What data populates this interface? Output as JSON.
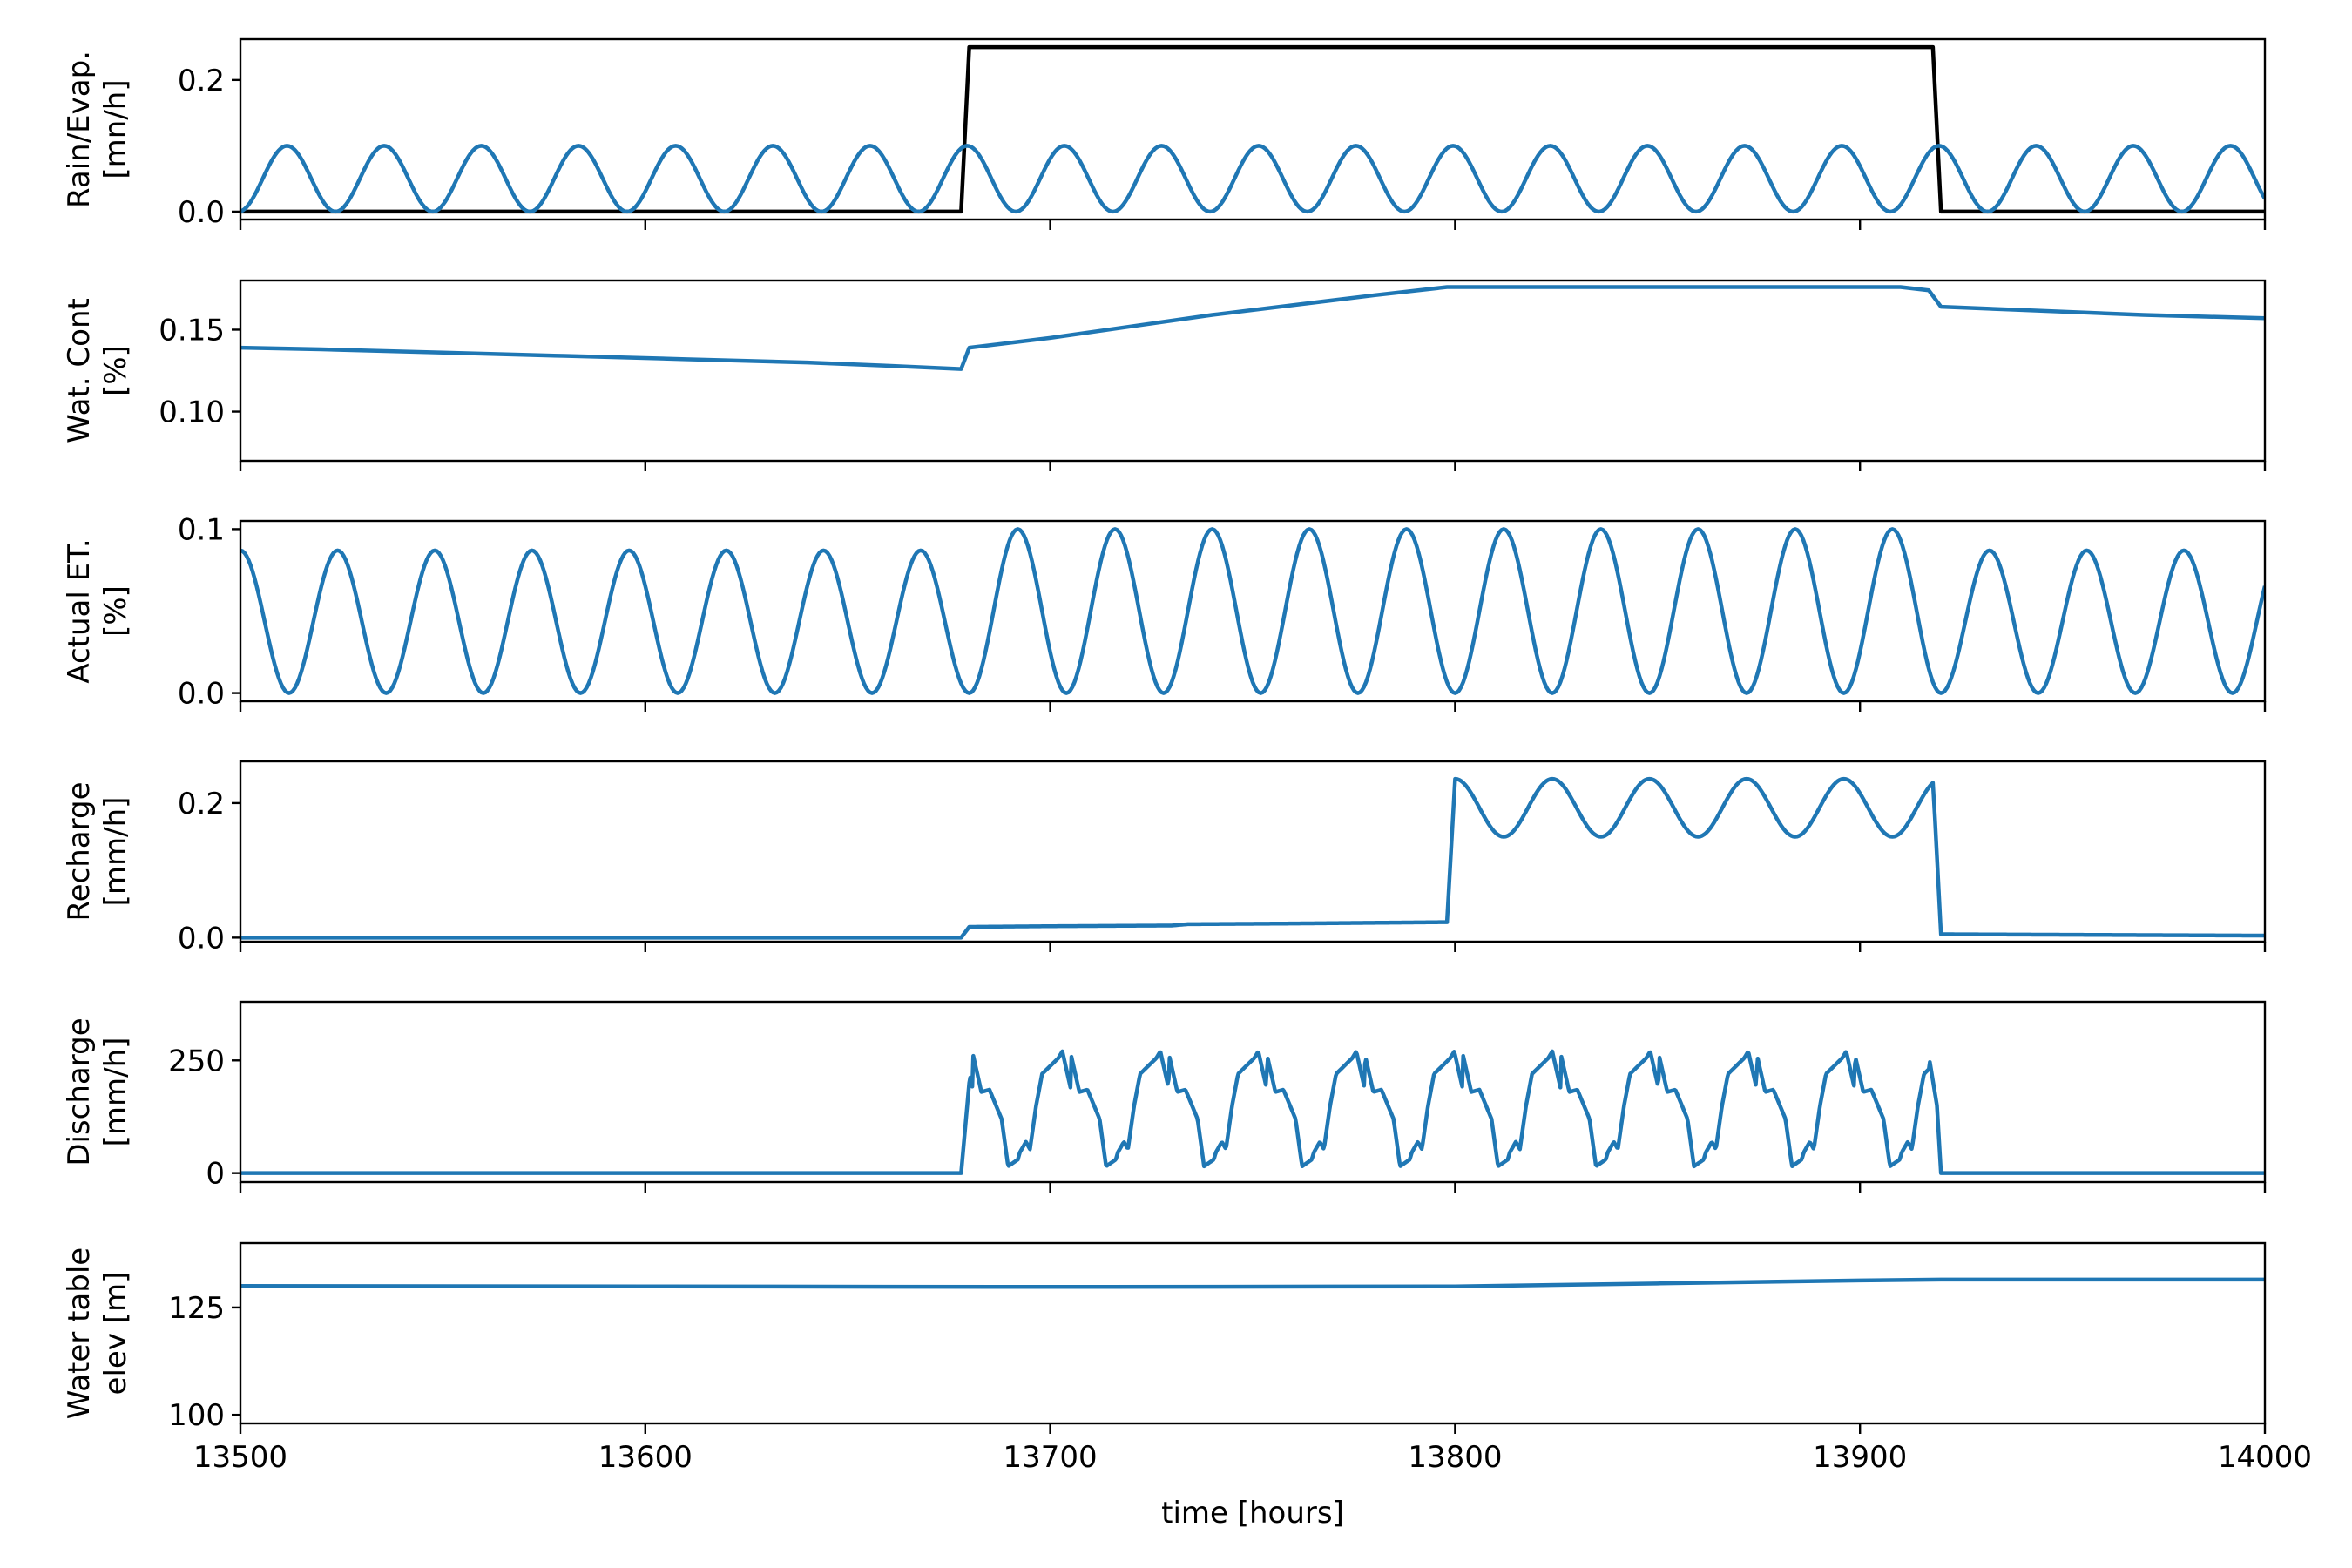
{
  "colors": {
    "blue": "#1f77b4",
    "black": "#000000",
    "axis": "#000000",
    "background": "#ffffff"
  },
  "chart_data": {
    "type": "line",
    "layout": "6 vertically stacked panels, shared x axis",
    "grid": false,
    "legend": "none",
    "xlabel": "time [hours]",
    "xlim": [
      13500,
      14000
    ],
    "xticks": [
      13500,
      13600,
      13700,
      13800,
      13900,
      14000
    ],
    "xtick_labels": [
      "13500",
      "13600",
      "13700",
      "13800",
      "13900",
      "14000"
    ],
    "panels": [
      {
        "id": "rain-evap",
        "ylabel": [
          "Rain/Evap.",
          "[mn/h]"
        ],
        "ylim": [
          -0.012,
          0.262
        ],
        "yticks": [
          0.0,
          0.2
        ],
        "ytick_labels": [
          "0.0",
          "0.2"
        ],
        "series": [
          {
            "color": "#000000",
            "x": [
              13500,
              13678,
              13680,
              13918,
              13920,
              14000
            ],
            "y": [
              0.0,
              0.0,
              0.25,
              0.25,
              0.0,
              0.0
            ]
          },
          {
            "color": "#1f77b4",
            "function": "evaporation",
            "period_hours": 24,
            "min": 0.0,
            "max": 0.1,
            "peak_hours": [
              13511.5,
              13535.5,
              13559.5,
              13583.5,
              13607.5,
              13631.5,
              13655.5,
              13679.5,
              13703.5,
              13727.5,
              13751.5,
              13775.5,
              13799.5,
              13823.5,
              13847.5,
              13871.5,
              13895.5,
              13919.5,
              13943.5,
              13967.5,
              13991.5
            ]
          }
        ]
      },
      {
        "id": "water-content",
        "ylabel": [
          "Wat. Cont",
          "[%]"
        ],
        "ylim": [
          0.07,
          0.18
        ],
        "yticks": [
          0.1,
          0.15
        ],
        "ytick_labels": [
          "0.10",
          "0.15"
        ],
        "series": [
          {
            "color": "#1f77b4",
            "x": [
              13500,
              13520,
              13550,
              13580,
              13610,
              13640,
              13660,
              13678,
              13680,
              13700,
              13720,
              13740,
              13760,
              13780,
              13798,
              13800,
              13850,
              13910,
              13917,
              13920,
              13940,
              13970,
              14000
            ],
            "y": [
              0.139,
              0.138,
              0.136,
              0.134,
              0.132,
              0.13,
              0.128,
              0.126,
              0.139,
              0.145,
              0.152,
              0.159,
              0.165,
              0.171,
              0.176,
              0.176,
              0.176,
              0.176,
              0.174,
              0.164,
              0.162,
              0.159,
              0.157
            ]
          }
        ]
      },
      {
        "id": "actual-et",
        "ylabel": [
          "Actual ET.",
          "[%]"
        ],
        "ylim": [
          -0.005,
          0.105
        ],
        "yticks": [
          0.0,
          0.1
        ],
        "ytick_labels": [
          "0.0",
          "0.1"
        ],
        "series": [
          {
            "color": "#1f77b4",
            "function": "actual-et",
            "period_hours": 24,
            "min": 0.0,
            "max_dry": 0.087,
            "max_wet": 0.1,
            "wet_window": [
              13680,
              13920
            ],
            "peak_hours": [
              13500,
              13524,
              13548,
              13572,
              13596,
              13620,
              13644,
              13668,
              13692,
              13716,
              13740,
              13764,
              13788,
              13812,
              13836,
              13860,
              13884,
              13908,
              13932,
              13956,
              13980
            ]
          }
        ]
      },
      {
        "id": "recharge",
        "ylabel": [
          "Recharge",
          "[mm/h]"
        ],
        "ylim": [
          -0.006,
          0.262
        ],
        "yticks": [
          0.0,
          0.2
        ],
        "ytick_labels": [
          "0.0",
          "0.2"
        ],
        "series": [
          {
            "color": "#1f77b4",
            "function": "recharge",
            "period_hours": 24,
            "base_min": 0.15,
            "base_max": 0.236,
            "x": [
              13500,
              13678,
              13680,
              13700,
              13730,
              13734,
              13760,
              13798,
              13800,
              13918,
              13920,
              13960,
              14000
            ],
            "y": [
              0.0,
              0.0,
              0.016,
              0.017,
              0.018,
              0.02,
              0.021,
              0.023,
              0.236,
              0.236,
              0.005,
              0.004,
              0.003
            ]
          }
        ]
      },
      {
        "id": "discharge",
        "ylabel": [
          "Discharge",
          "[mm/h]"
        ],
        "ylim": [
          -20,
          380
        ],
        "yticks": [
          0,
          250
        ],
        "ytick_labels": [
          "0",
          "250"
        ],
        "series": [
          {
            "color": "#1f77b4",
            "function": "discharge",
            "cycle_start": 13678,
            "cycle_end": 13920,
            "period_hours": 24.2,
            "peak": 270,
            "x": [
              13500,
              13678,
              13680,
              13681,
              13683,
              13685,
              13688,
              13689.6,
              13692,
              13698,
              13702,
              13703,
              13705,
              13707,
              13709,
              13711,
              13713,
              13714.5,
              13715.5,
              13917,
              13919,
              13920,
              14000
            ],
            "y": [
              0,
              0,
              200,
              260,
              180,
              185,
              120,
              15,
              30,
              220,
              255,
              270,
              190,
              190,
              150,
              40,
              120,
              40,
              10,
              260,
              150,
              0,
              0
            ]
          }
        ]
      },
      {
        "id": "water-table",
        "ylabel": [
          "Water table",
          "elev [m]"
        ],
        "ylim": [
          98,
          140
        ],
        "yticks": [
          100,
          125
        ],
        "ytick_labels": [
          "100",
          "125"
        ],
        "series": [
          {
            "color": "#1f77b4",
            "x": [
              13500,
              13600,
              13700,
              13800,
              13850,
              13900,
              13920,
              14000
            ],
            "y": [
              130,
              129.9,
              129.8,
              129.9,
              130.6,
              131.3,
              131.5,
              131.5
            ]
          }
        ]
      }
    ]
  }
}
